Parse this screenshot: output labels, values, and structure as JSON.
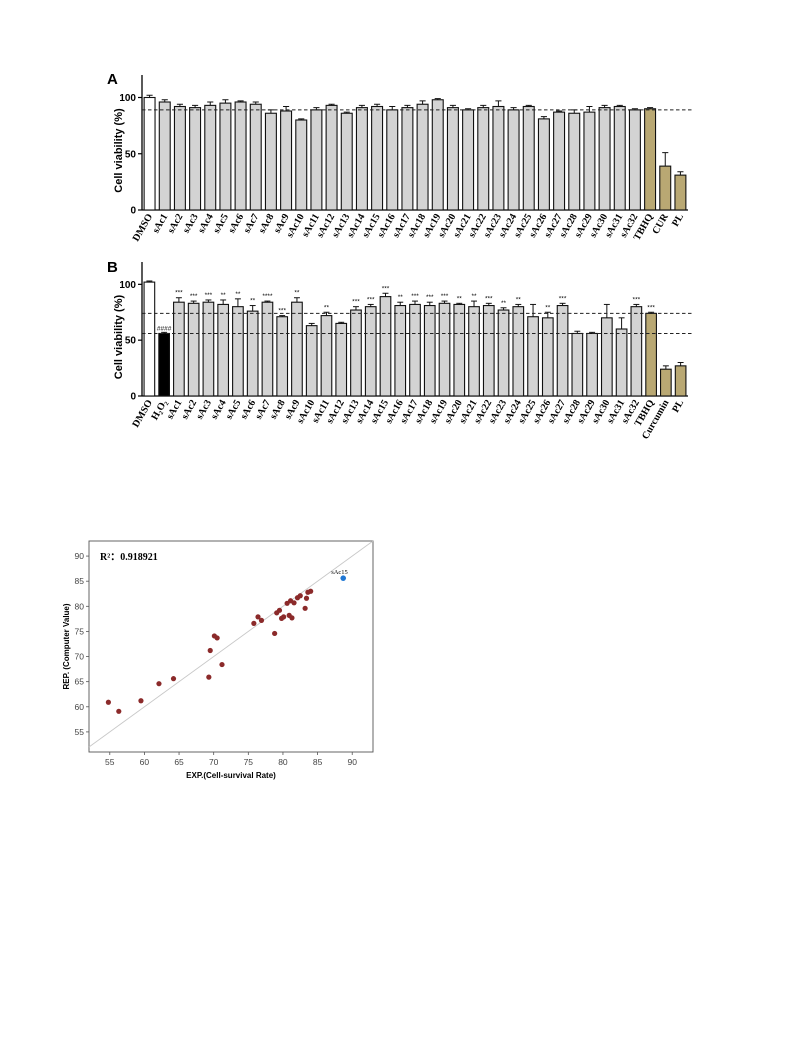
{
  "chart_data": [
    {
      "panel": "A",
      "type": "bar",
      "ylabel": "Cell viability (%)",
      "ylim": [
        0,
        120
      ],
      "yticks": [
        "0",
        "50",
        "100"
      ],
      "reference_line": 89,
      "categories": [
        "DMSO",
        "sAc1",
        "sAc2",
        "sAc3",
        "sAc4",
        "sAc5",
        "sAc6",
        "sAc7",
        "sAc8",
        "sAc9",
        "sAc10",
        "sAc11",
        "sAc12",
        "sAc13",
        "sAc14",
        "sAc15",
        "sAc16",
        "sAc17",
        "sAc18",
        "sAc19",
        "sAc20",
        "sAc21",
        "sAc22",
        "sAc23",
        "sAc24",
        "sAc25",
        "sAc26",
        "sAc27",
        "sAc28",
        "sAc29",
        "sAc30",
        "sAc31",
        "sAc32",
        "TBHQ",
        "CUR",
        "PL"
      ],
      "values": [
        100,
        96,
        92,
        91,
        93,
        95,
        96,
        94,
        86,
        88,
        80,
        89,
        93,
        86,
        91,
        92,
        89,
        91,
        94,
        98,
        91,
        89,
        91,
        92,
        89,
        92,
        81,
        87,
        86,
        87,
        91,
        92,
        89,
        90,
        39,
        31
      ],
      "errors": [
        2,
        2,
        2,
        2,
        3,
        3,
        1,
        2,
        3,
        4,
        1,
        2,
        1,
        1,
        2,
        2,
        3,
        2,
        3,
        1,
        2,
        1,
        2,
        5,
        2,
        1,
        2,
        1,
        3,
        5,
        2,
        1,
        1,
        1,
        12,
        3
      ],
      "bar_colors": [
        "#ffffff",
        "#d3d3d3",
        "#d3d3d3",
        "#d3d3d3",
        "#d3d3d3",
        "#d3d3d3",
        "#d3d3d3",
        "#d3d3d3",
        "#d3d3d3",
        "#d3d3d3",
        "#d3d3d3",
        "#d3d3d3",
        "#d3d3d3",
        "#d3d3d3",
        "#d3d3d3",
        "#d3d3d3",
        "#d3d3d3",
        "#d3d3d3",
        "#d3d3d3",
        "#d3d3d3",
        "#d3d3d3",
        "#d3d3d3",
        "#d3d3d3",
        "#d3d3d3",
        "#d3d3d3",
        "#d3d3d3",
        "#d3d3d3",
        "#d3d3d3",
        "#d3d3d3",
        "#d3d3d3",
        "#d3d3d3",
        "#d3d3d3",
        "#d3d3d3",
        "#b9a873",
        "#b9a873",
        "#b9a873"
      ]
    },
    {
      "panel": "B",
      "type": "bar",
      "ylabel": "Cell viability (%)",
      "ylim": [
        0,
        120
      ],
      "yticks": [
        "0",
        "50",
        "100"
      ],
      "reference_lines": [
        74,
        56
      ],
      "categories": [
        "DMSO",
        "H₂O₂",
        "sAc1",
        "sAc2",
        "sAc3",
        "sAc4",
        "sAc5",
        "sAc6",
        "sAc7",
        "sAc8",
        "sAc9",
        "sAc10",
        "sAc11",
        "sAc12",
        "sAc13",
        "sAc14",
        "sAc15",
        "sAc16",
        "sAc17",
        "sAc18",
        "sAc19",
        "sAc20",
        "sAc21",
        "sAc22",
        "sAc23",
        "sAc24",
        "sAc25",
        "sAc26",
        "sAc27",
        "sAc28",
        "sAc29",
        "sAc30",
        "sAc31",
        "sAc32",
        "TBHQ",
        "Curcumin",
        "PL"
      ],
      "values": [
        102,
        56,
        84,
        83,
        84,
        82,
        80,
        76,
        84,
        71,
        84,
        63,
        72,
        65,
        77,
        80,
        89,
        81,
        82,
        81,
        83,
        82,
        80,
        81,
        77,
        80,
        71,
        70,
        81,
        56,
        56,
        70,
        60,
        80,
        74,
        24,
        27
      ],
      "errors": [
        1,
        1,
        4,
        2,
        2,
        4,
        7,
        5,
        1,
        1,
        4,
        2,
        3,
        1,
        3,
        2,
        3,
        3,
        3,
        3,
        2,
        1,
        5,
        2,
        2,
        2,
        11,
        5,
        2,
        2,
        1,
        12,
        10,
        2,
        1,
        3,
        3
      ],
      "significance": [
        "",
        "####",
        "***",
        "***",
        "***",
        "**",
        "**",
        "**",
        "****",
        "***",
        "**",
        "",
        "**",
        "",
        "***",
        "***",
        "***",
        "**",
        "***",
        "***",
        "***",
        "**",
        "**",
        "***",
        "**",
        "**",
        "",
        "**",
        "***",
        "",
        "",
        "",
        "",
        "***",
        "***",
        "",
        ""
      ],
      "bar_colors": [
        "#ffffff",
        "#000000",
        "#d3d3d3",
        "#d3d3d3",
        "#d3d3d3",
        "#d3d3d3",
        "#d3d3d3",
        "#d3d3d3",
        "#d3d3d3",
        "#d3d3d3",
        "#d3d3d3",
        "#d3d3d3",
        "#d3d3d3",
        "#d3d3d3",
        "#d3d3d3",
        "#d3d3d3",
        "#d3d3d3",
        "#d3d3d3",
        "#d3d3d3",
        "#d3d3d3",
        "#d3d3d3",
        "#d3d3d3",
        "#d3d3d3",
        "#d3d3d3",
        "#d3d3d3",
        "#d3d3d3",
        "#d3d3d3",
        "#d3d3d3",
        "#d3d3d3",
        "#d3d3d3",
        "#d3d3d3",
        "#d3d3d3",
        "#d3d3d3",
        "#d3d3d3",
        "#b9a873",
        "#b9a873",
        "#b9a873"
      ]
    },
    {
      "panel": "scatter",
      "type": "scatter",
      "xlabel": "EXP.(Cell-survival Rate)",
      "ylabel": "REP. (Computer Value)",
      "r2_label": "R²：0.918921",
      "xlim": [
        52,
        93
      ],
      "ylim": [
        51,
        93
      ],
      "xticks": [
        55,
        60,
        65,
        70,
        75,
        80,
        85,
        90
      ],
      "yticks": [
        55,
        60,
        65,
        70,
        75,
        80,
        85,
        90
      ],
      "point_color": "#8b2a2a",
      "highlight_color": "#1f77d4",
      "highlight_label": "sAc15",
      "highlight_point": [
        88.7,
        85.6
      ],
      "points": [
        [
          54.8,
          60.9
        ],
        [
          56.3,
          59.1
        ],
        [
          59.5,
          61.2
        ],
        [
          62.1,
          64.6
        ],
        [
          64.2,
          65.6
        ],
        [
          69.3,
          65.9
        ],
        [
          69.5,
          71.2
        ],
        [
          70.1,
          74.1
        ],
        [
          70.5,
          73.7
        ],
        [
          71.2,
          68.4
        ],
        [
          75.8,
          76.6
        ],
        [
          76.4,
          77.9
        ],
        [
          76.9,
          77.2
        ],
        [
          78.8,
          74.6
        ],
        [
          79.1,
          78.7
        ],
        [
          79.5,
          79.2
        ],
        [
          79.8,
          77.6
        ],
        [
          80.1,
          77.9
        ],
        [
          80.6,
          80.6
        ],
        [
          80.9,
          78.2
        ],
        [
          81.1,
          81.1
        ],
        [
          81.3,
          77.7
        ],
        [
          81.6,
          80.7
        ],
        [
          82.1,
          81.7
        ],
        [
          82.5,
          82.1
        ],
        [
          83.2,
          79.6
        ],
        [
          83.4,
          81.6
        ],
        [
          83.6,
          82.8
        ],
        [
          84.0,
          83.0
        ]
      ]
    }
  ]
}
